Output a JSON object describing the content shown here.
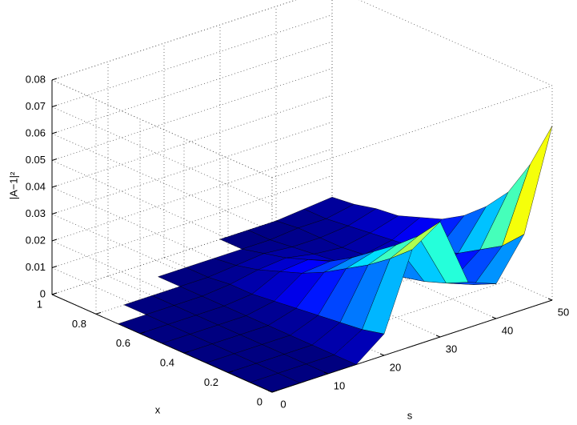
{
  "chart_data": {
    "type": "surface",
    "xlabel": "s",
    "ylabel": "x",
    "zlabel": "|A−1|²",
    "s": [
      0,
      5,
      10,
      15,
      20,
      25,
      30,
      35,
      40,
      45,
      50
    ],
    "x": [
      0,
      0.1,
      0.2,
      0.3,
      0.4,
      0.5,
      0.6,
      0.7,
      0.8,
      0.9,
      1
    ],
    "z": [
      [
        0,
        0,
        0,
        0,
        0.008,
        0.036,
        0.043,
        0.017,
        0.013,
        0.028,
        0.065
      ],
      [
        0,
        0,
        0,
        0,
        0.006,
        0.029,
        0.034,
        0.013,
        0.009,
        0.02,
        0.047
      ],
      [
        0,
        0,
        0,
        0,
        0.005,
        0.023,
        0.027,
        0.01,
        0.007,
        0.015,
        0.033
      ],
      [
        0,
        0,
        0,
        0,
        0.004,
        0.018,
        0.021,
        0.008,
        0.005,
        0.01,
        0.024
      ],
      [
        0,
        0,
        0,
        0,
        0.003,
        0.013,
        0.015,
        0.006,
        0.003,
        0.007,
        0.017
      ],
      [
        0,
        0,
        0,
        0,
        0.002,
        0.009,
        0.01,
        0.004,
        0.003,
        0.005,
        0.012
      ],
      [
        0,
        0,
        0,
        0,
        0.001,
        0.006,
        0.007,
        0.003,
        0.002,
        0.004,
        0.009
      ],
      [
        0,
        0,
        0,
        0,
        0.001,
        0.003,
        0.004,
        0.002,
        0.001,
        0.003,
        0.006
      ],
      [
        null,
        0,
        0,
        0,
        0,
        0.001,
        0.002,
        0.001,
        0.001,
        0.002,
        0.005
      ],
      [
        null,
        null,
        null,
        0,
        0,
        0,
        0,
        0,
        0.001,
        0.001,
        0.003
      ],
      [
        null,
        null,
        null,
        null,
        null,
        null,
        0,
        0,
        0,
        0.001,
        0.002
      ]
    ],
    "slim": [
      0,
      50
    ],
    "sticks": [
      0,
      10,
      20,
      30,
      40,
      50
    ],
    "xlim": [
      0,
      1
    ],
    "xticks": [
      0,
      0.2,
      0.4,
      0.6,
      0.8,
      1
    ],
    "zlim": [
      0,
      0.08
    ],
    "zticks": [
      0,
      0.01,
      0.02,
      0.03,
      0.04,
      0.05,
      0.06,
      0.07,
      0.08
    ],
    "grid": true,
    "colormap": "jet",
    "edge_color": "#000000"
  }
}
